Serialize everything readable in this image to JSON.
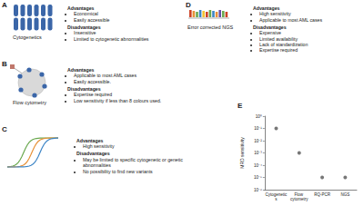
{
  "panels": [
    {
      "letter": "A",
      "label": "Cytogenetics",
      "advantages_title": "Advantages",
      "advantages": [
        "Economical",
        "Easily accessible"
      ],
      "disadvantages_title": "Disadvantages",
      "disadvantages": [
        "Insensitive",
        "Limited to cytogenetic abnormalities"
      ]
    },
    {
      "letter": "B",
      "label": "Flow cytometry",
      "advantages_title": "Advantages",
      "advantages": [
        "Applicable to most AML cases",
        "Easily accessible."
      ],
      "disadvantages_title": "Disadvantages",
      "disadvantages": [
        "Expertise required",
        "Low sensitivity if less than 8 colours used."
      ]
    },
    {
      "letter": "C",
      "advantages_title": "Advantages",
      "advantages": [
        "High sensitivity"
      ],
      "disadvantages_title": "Disadvantages",
      "disadvantages": [
        "May be limited to specific cytogenetic or genetic abnormalities",
        "No possibility to find new variants"
      ]
    },
    {
      "letter": "D",
      "label": "Error corrected NGS",
      "advantages_title": "Advantages",
      "advantages": [
        "High sensitivity",
        "Applicable to most AML cases"
      ],
      "disadvantages_title": "Disadvantages",
      "disadvantages": [
        "Expensive",
        "Limited availability",
        "Lack of standardization",
        "Expertise required"
      ]
    }
  ],
  "chart_letter": "E",
  "chart_data": {
    "type": "scatter",
    "y_label": "MRD sensitivity",
    "categories": [
      "Cytogenetics",
      "Flow cytometry",
      "RQ-PCR",
      "NGS"
    ],
    "values": [
      0.1,
      0.001,
      1e-05,
      1e-05
    ],
    "color": "#555555",
    "marker": "circle",
    "log": "y",
    "ylim": [
      1e-06,
      1
    ],
    "yticks": [
      {
        "value": 1e-06,
        "label": "10⁻⁶"
      },
      {
        "value": 1e-05,
        "label": "10⁻⁵"
      },
      {
        "value": 0.0001,
        "label": "10⁻⁴"
      },
      {
        "value": 0.001,
        "label": "10⁻³"
      },
      {
        "value": 0.01,
        "label": "10⁻²"
      },
      {
        "value": 0.1,
        "label": "10⁻¹"
      },
      {
        "value": 1,
        "label": "10⁰"
      }
    ],
    "grid": false
  }
}
